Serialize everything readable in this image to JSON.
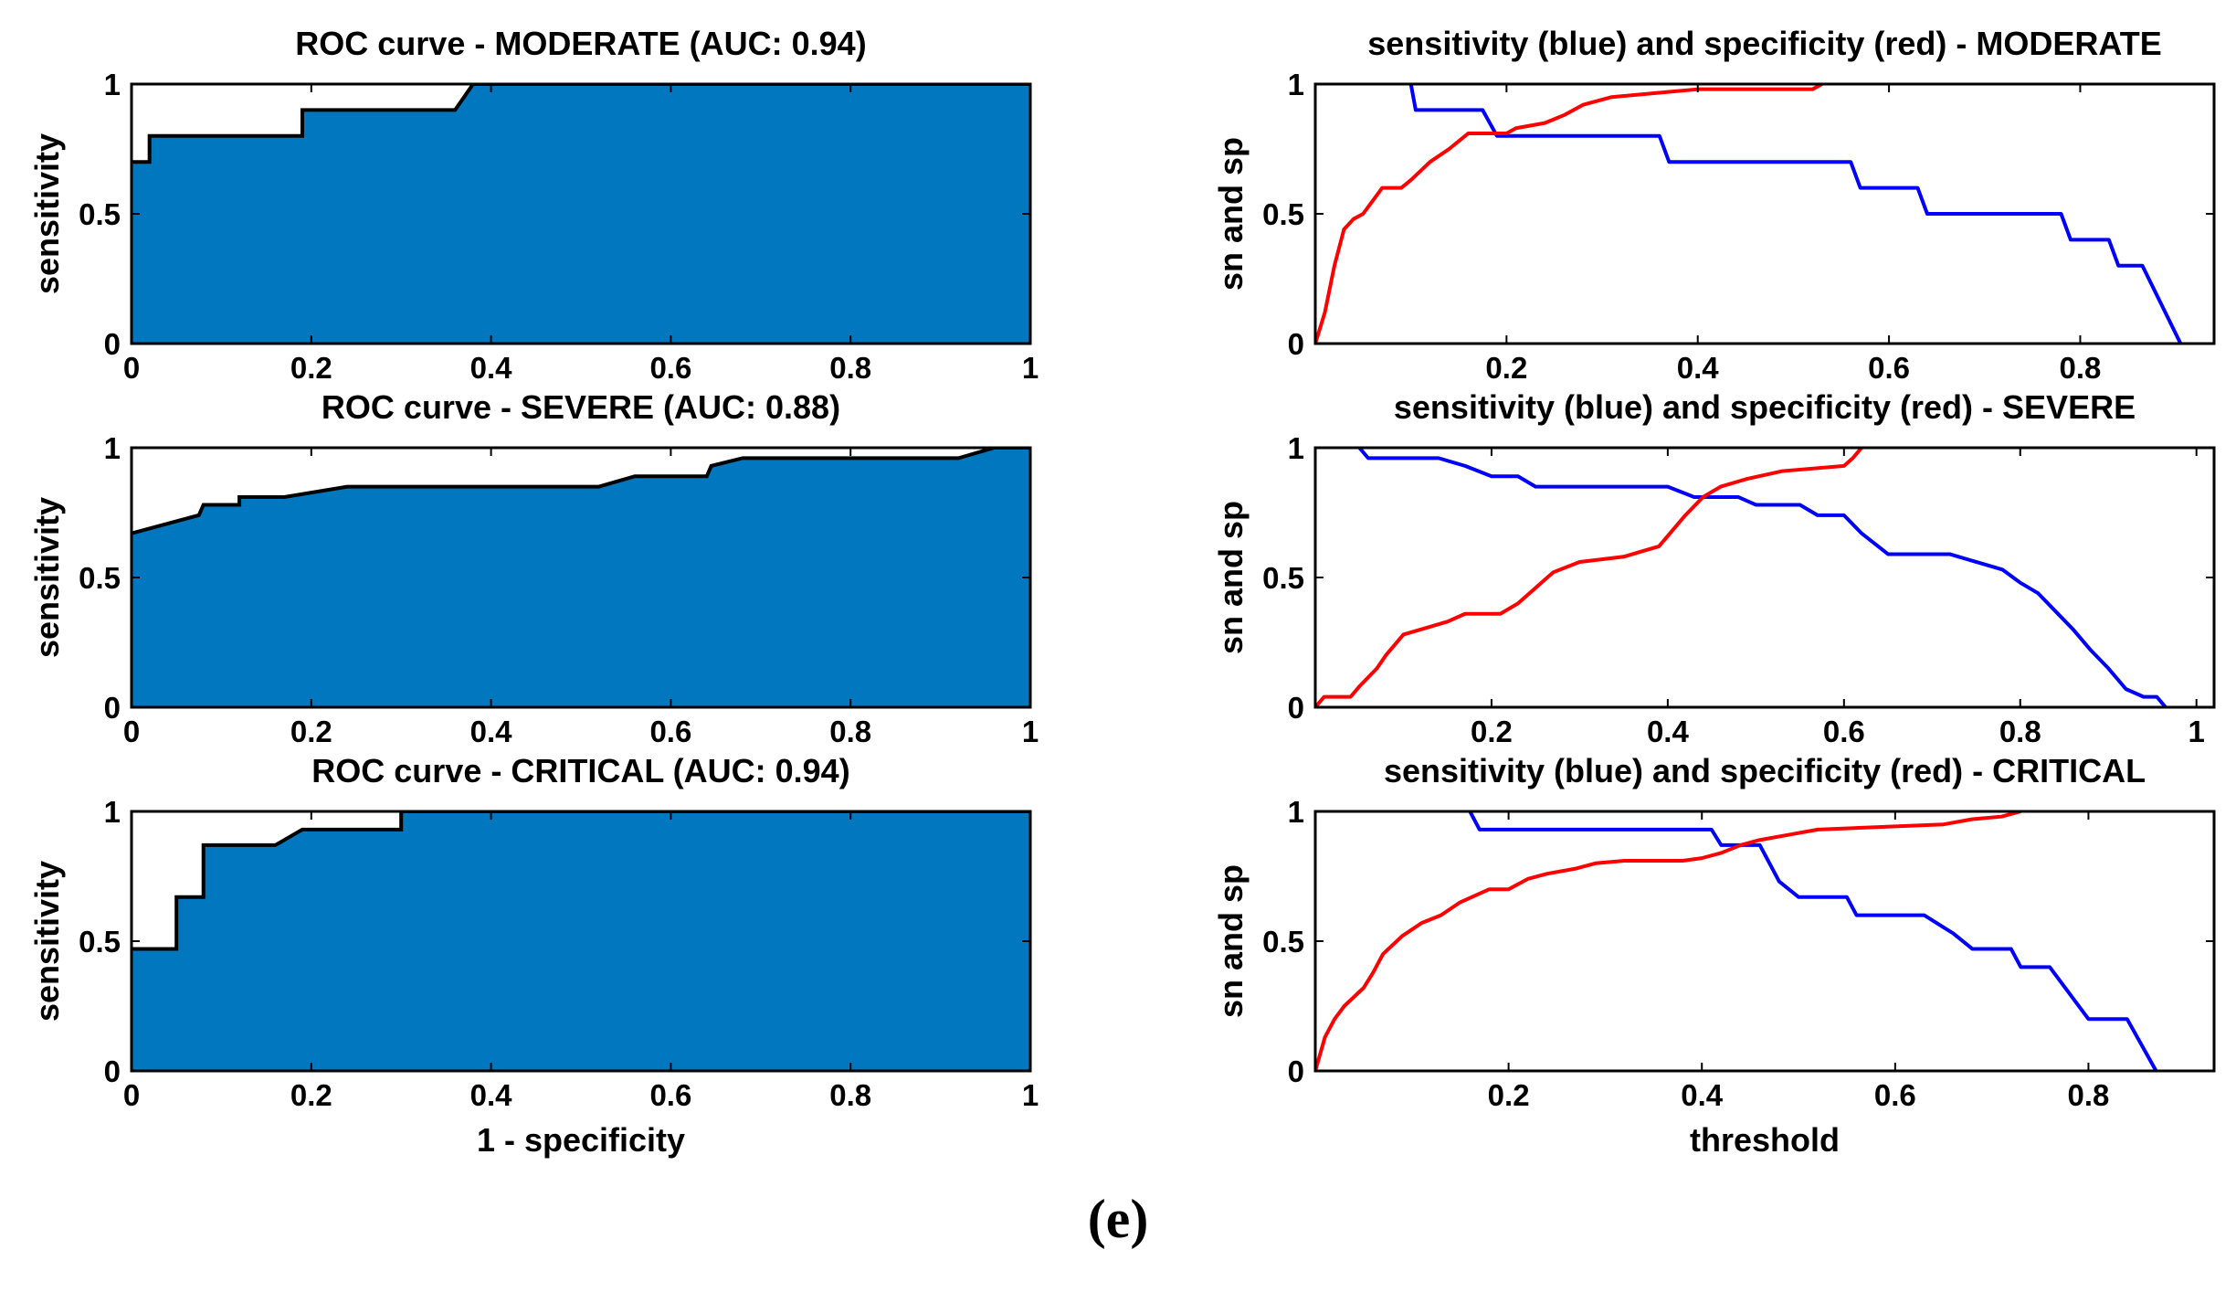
{
  "panel_caption": "(e)",
  "colors": {
    "fill": "#0077BE",
    "sensitivity": "#0000FF",
    "specificity": "#FF0000",
    "axis": "#000000"
  },
  "chart_data": [
    {
      "id": "roc-moderate",
      "type": "area",
      "title": "ROC curve - MODERATE (AUC: 0.94)",
      "xlabel": "",
      "ylabel": "sensitivity",
      "xlim": [
        0,
        1
      ],
      "ylim": [
        0,
        1
      ],
      "xticks": [
        0,
        0.2,
        0.4,
        0.6,
        0.8,
        1
      ],
      "xticklabels": [
        "0",
        "0.2",
        "0.4",
        "0.6",
        "0.8",
        "1"
      ],
      "yticks": [
        0,
        0.5,
        1
      ],
      "yticklabels": [
        "0",
        "0.5",
        "1"
      ],
      "grid": false,
      "series": [
        {
          "name": "ROC",
          "points": [
            [
              0,
              0.7
            ],
            [
              0.02,
              0.7
            ],
            [
              0.02,
              0.8
            ],
            [
              0.19,
              0.8
            ],
            [
              0.19,
              0.9
            ],
            [
              0.36,
              0.9
            ],
            [
              0.38,
              1.0
            ],
            [
              1,
              1.0
            ]
          ]
        }
      ]
    },
    {
      "id": "sn-sp-moderate",
      "type": "line",
      "title": "sensitivity (blue) and specificity (red) - MODERATE",
      "xlabel": "",
      "ylabel": "sn and sp",
      "xlim": [
        0,
        0.94
      ],
      "ylim": [
        0,
        1
      ],
      "xticks": [
        0.2,
        0.4,
        0.6,
        0.8
      ],
      "xticklabels": [
        "0.2",
        "0.4",
        "0.6",
        "0.8"
      ],
      "yticks": [
        0,
        0.5,
        1
      ],
      "yticklabels": [
        "0",
        "0.5",
        "1"
      ],
      "grid": false,
      "series": [
        {
          "name": "sensitivity",
          "color": "blue",
          "points": [
            [
              0.1,
              1.0
            ],
            [
              0.105,
              0.9
            ],
            [
              0.175,
              0.9
            ],
            [
              0.19,
              0.8
            ],
            [
              0.36,
              0.8
            ],
            [
              0.37,
              0.7
            ],
            [
              0.56,
              0.7
            ],
            [
              0.57,
              0.6
            ],
            [
              0.63,
              0.6
            ],
            [
              0.64,
              0.5
            ],
            [
              0.78,
              0.5
            ],
            [
              0.79,
              0.4
            ],
            [
              0.83,
              0.4
            ],
            [
              0.84,
              0.3
            ],
            [
              0.865,
              0.3
            ],
            [
              0.905,
              0.0
            ]
          ]
        },
        {
          "name": "specificity",
          "color": "red",
          "points": [
            [
              0.0,
              0.0
            ],
            [
              0.01,
              0.12
            ],
            [
              0.02,
              0.3
            ],
            [
              0.03,
              0.44
            ],
            [
              0.04,
              0.48
            ],
            [
              0.05,
              0.5
            ],
            [
              0.06,
              0.55
            ],
            [
              0.07,
              0.6
            ],
            [
              0.09,
              0.6
            ],
            [
              0.1,
              0.63
            ],
            [
              0.12,
              0.7
            ],
            [
              0.14,
              0.75
            ],
            [
              0.16,
              0.81
            ],
            [
              0.2,
              0.81
            ],
            [
              0.21,
              0.83
            ],
            [
              0.24,
              0.85
            ],
            [
              0.26,
              0.88
            ],
            [
              0.28,
              0.92
            ],
            [
              0.31,
              0.95
            ],
            [
              0.34,
              0.96
            ],
            [
              0.37,
              0.97
            ],
            [
              0.4,
              0.98
            ],
            [
              0.52,
              0.98
            ],
            [
              0.53,
              1.0
            ]
          ]
        }
      ]
    },
    {
      "id": "roc-severe",
      "type": "area",
      "title": "ROC curve - SEVERE (AUC: 0.88)",
      "xlabel": "",
      "ylabel": "sensitivity",
      "xlim": [
        0,
        1
      ],
      "ylim": [
        0,
        1
      ],
      "xticks": [
        0,
        0.2,
        0.4,
        0.6,
        0.8,
        1
      ],
      "xticklabels": [
        "0",
        "0.2",
        "0.4",
        "0.6",
        "0.8",
        "1"
      ],
      "yticks": [
        0,
        0.5,
        1
      ],
      "yticklabels": [
        "0",
        "0.5",
        "1"
      ],
      "grid": false,
      "series": [
        {
          "name": "ROC",
          "points": [
            [
              0,
              0.67
            ],
            [
              0.075,
              0.74
            ],
            [
              0.08,
              0.78
            ],
            [
              0.12,
              0.78
            ],
            [
              0.12,
              0.81
            ],
            [
              0.17,
              0.81
            ],
            [
              0.24,
              0.85
            ],
            [
              0.52,
              0.85
            ],
            [
              0.56,
              0.89
            ],
            [
              0.64,
              0.89
            ],
            [
              0.645,
              0.93
            ],
            [
              0.68,
              0.96
            ],
            [
              0.92,
              0.96
            ],
            [
              0.96,
              1.0
            ],
            [
              1,
              1.0
            ]
          ]
        }
      ]
    },
    {
      "id": "sn-sp-severe",
      "type": "line",
      "title": "sensitivity (blue) and specificity (red) - SEVERE",
      "xlabel": "",
      "ylabel": "sn and sp",
      "xlim": [
        0,
        1.02
      ],
      "ylim": [
        0,
        1
      ],
      "xticks": [
        0.2,
        0.4,
        0.6,
        0.8,
        1
      ],
      "xticklabels": [
        "0.2",
        "0.4",
        "0.6",
        "0.8",
        "1"
      ],
      "yticks": [
        0,
        0.5,
        1
      ],
      "yticklabels": [
        "0",
        "0.5",
        "1"
      ],
      "grid": false,
      "series": [
        {
          "name": "sensitivity",
          "color": "blue",
          "points": [
            [
              0.05,
              1.0
            ],
            [
              0.06,
              0.96
            ],
            [
              0.14,
              0.96
            ],
            [
              0.17,
              0.93
            ],
            [
              0.2,
              0.89
            ],
            [
              0.23,
              0.89
            ],
            [
              0.25,
              0.85
            ],
            [
              0.4,
              0.85
            ],
            [
              0.43,
              0.81
            ],
            [
              0.48,
              0.81
            ],
            [
              0.5,
              0.78
            ],
            [
              0.55,
              0.78
            ],
            [
              0.57,
              0.74
            ],
            [
              0.6,
              0.74
            ],
            [
              0.62,
              0.67
            ],
            [
              0.65,
              0.59
            ],
            [
              0.72,
              0.59
            ],
            [
              0.75,
              0.56
            ],
            [
              0.78,
              0.53
            ],
            [
              0.8,
              0.48
            ],
            [
              0.82,
              0.44
            ],
            [
              0.84,
              0.37
            ],
            [
              0.86,
              0.3
            ],
            [
              0.88,
              0.22
            ],
            [
              0.9,
              0.15
            ],
            [
              0.91,
              0.11
            ],
            [
              0.92,
              0.07
            ],
            [
              0.94,
              0.04
            ],
            [
              0.955,
              0.04
            ],
            [
              0.965,
              0.0
            ]
          ]
        },
        {
          "name": "specificity",
          "color": "red",
          "points": [
            [
              0.0,
              0.0
            ],
            [
              0.01,
              0.04
            ],
            [
              0.04,
              0.04
            ],
            [
              0.05,
              0.08
            ],
            [
              0.07,
              0.15
            ],
            [
              0.08,
              0.2
            ],
            [
              0.1,
              0.28
            ],
            [
              0.12,
              0.3
            ],
            [
              0.15,
              0.33
            ],
            [
              0.17,
              0.36
            ],
            [
              0.21,
              0.36
            ],
            [
              0.23,
              0.4
            ],
            [
              0.25,
              0.46
            ],
            [
              0.27,
              0.52
            ],
            [
              0.3,
              0.56
            ],
            [
              0.35,
              0.58
            ],
            [
              0.37,
              0.6
            ],
            [
              0.39,
              0.62
            ],
            [
              0.4,
              0.66
            ],
            [
              0.42,
              0.74
            ],
            [
              0.44,
              0.81
            ],
            [
              0.46,
              0.85
            ],
            [
              0.49,
              0.88
            ],
            [
              0.53,
              0.91
            ],
            [
              0.6,
              0.93
            ],
            [
              0.61,
              0.96
            ],
            [
              0.62,
              1.0
            ]
          ]
        }
      ]
    },
    {
      "id": "roc-critical",
      "type": "area",
      "title": "ROC curve - CRITICAL (AUC: 0.94)",
      "xlabel": "1 - specificity",
      "ylabel": "sensitivity",
      "xlim": [
        0,
        1
      ],
      "ylim": [
        0,
        1
      ],
      "xticks": [
        0,
        0.2,
        0.4,
        0.6,
        0.8,
        1
      ],
      "xticklabels": [
        "0",
        "0.2",
        "0.4",
        "0.6",
        "0.8",
        "1"
      ],
      "yticks": [
        0,
        0.5,
        1
      ],
      "yticklabels": [
        "0",
        "0.5",
        "1"
      ],
      "grid": false,
      "series": [
        {
          "name": "ROC",
          "points": [
            [
              0,
              0.47
            ],
            [
              0.05,
              0.47
            ],
            [
              0.05,
              0.67
            ],
            [
              0.08,
              0.67
            ],
            [
              0.08,
              0.87
            ],
            [
              0.16,
              0.87
            ],
            [
              0.19,
              0.93
            ],
            [
              0.3,
              0.93
            ],
            [
              0.3,
              1.0
            ],
            [
              1,
              1.0
            ]
          ]
        }
      ]
    },
    {
      "id": "sn-sp-critical",
      "type": "line",
      "title": "sensitivity (blue) and specificity (red) - CRITICAL",
      "xlabel": "threshold",
      "ylabel": "sn and sp",
      "xlim": [
        0,
        0.93
      ],
      "ylim": [
        0,
        1
      ],
      "xticks": [
        0.2,
        0.4,
        0.6,
        0.8
      ],
      "xticklabels": [
        "0.2",
        "0.4",
        "0.6",
        "0.8"
      ],
      "yticks": [
        0,
        0.5,
        1
      ],
      "yticklabels": [
        "0",
        "0.5",
        "1"
      ],
      "grid": false,
      "series": [
        {
          "name": "sensitivity",
          "color": "blue",
          "points": [
            [
              0.16,
              1.0
            ],
            [
              0.17,
              0.93
            ],
            [
              0.41,
              0.93
            ],
            [
              0.42,
              0.87
            ],
            [
              0.46,
              0.87
            ],
            [
              0.48,
              0.73
            ],
            [
              0.5,
              0.67
            ],
            [
              0.55,
              0.67
            ],
            [
              0.56,
              0.6
            ],
            [
              0.63,
              0.6
            ],
            [
              0.66,
              0.53
            ],
            [
              0.68,
              0.47
            ],
            [
              0.72,
              0.47
            ],
            [
              0.73,
              0.4
            ],
            [
              0.76,
              0.4
            ],
            [
              0.78,
              0.3
            ],
            [
              0.8,
              0.2
            ],
            [
              0.84,
              0.2
            ],
            [
              0.87,
              0.0
            ]
          ]
        },
        {
          "name": "specificity",
          "color": "red",
          "points": [
            [
              0.0,
              0.0
            ],
            [
              0.01,
              0.13
            ],
            [
              0.02,
              0.2
            ],
            [
              0.03,
              0.25
            ],
            [
              0.05,
              0.32
            ],
            [
              0.06,
              0.38
            ],
            [
              0.07,
              0.45
            ],
            [
              0.09,
              0.52
            ],
            [
              0.11,
              0.57
            ],
            [
              0.13,
              0.6
            ],
            [
              0.15,
              0.65
            ],
            [
              0.18,
              0.7
            ],
            [
              0.2,
              0.7
            ],
            [
              0.22,
              0.74
            ],
            [
              0.24,
              0.76
            ],
            [
              0.27,
              0.78
            ],
            [
              0.29,
              0.8
            ],
            [
              0.32,
              0.81
            ],
            [
              0.38,
              0.81
            ],
            [
              0.4,
              0.82
            ],
            [
              0.42,
              0.84
            ],
            [
              0.44,
              0.87
            ],
            [
              0.46,
              0.89
            ],
            [
              0.49,
              0.91
            ],
            [
              0.52,
              0.93
            ],
            [
              0.65,
              0.95
            ],
            [
              0.68,
              0.97
            ],
            [
              0.71,
              0.98
            ],
            [
              0.73,
              1.0
            ]
          ]
        }
      ]
    }
  ]
}
